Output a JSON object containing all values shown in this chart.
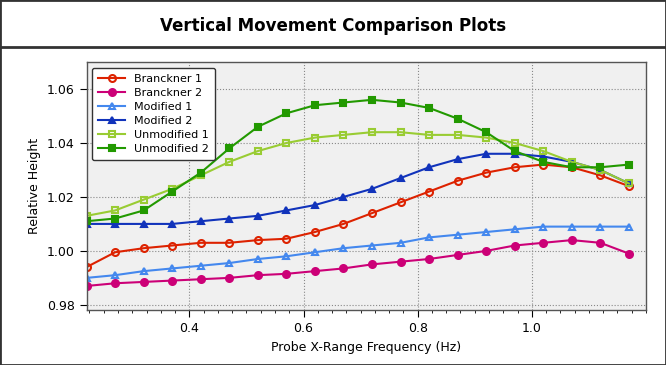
{
  "title": "Vertical Movement Comparison Plots",
  "xlabel": "Probe X-Range Frequency (Hz)",
  "ylabel": "Relative Height",
  "xlim": [
    0.22,
    1.2
  ],
  "ylim": [
    0.978,
    1.07
  ],
  "yticks": [
    0.98,
    1.0,
    1.02,
    1.04,
    1.06
  ],
  "xticks": [
    0.4,
    0.6,
    0.8,
    1.0
  ],
  "plot_bg": "#f0f0f0",
  "fig_bg": "#ffffff",
  "outer_bg": "#bbbbbb",
  "series": [
    {
      "label": "Branckner 1",
      "color": "#dd2200",
      "marker": "o",
      "fillstyle": "none",
      "x": [
        0.22,
        0.27,
        0.32,
        0.37,
        0.42,
        0.47,
        0.52,
        0.57,
        0.62,
        0.67,
        0.72,
        0.77,
        0.82,
        0.87,
        0.92,
        0.97,
        1.02,
        1.07,
        1.12,
        1.17
      ],
      "y": [
        0.994,
        0.9995,
        1.001,
        1.002,
        1.003,
        1.003,
        1.004,
        1.0045,
        1.007,
        1.01,
        1.014,
        1.018,
        1.022,
        1.026,
        1.029,
        1.031,
        1.032,
        1.031,
        1.028,
        1.024
      ]
    },
    {
      "label": "Branckner 2",
      "color": "#cc0077",
      "marker": "o",
      "fillstyle": "full",
      "x": [
        0.22,
        0.27,
        0.32,
        0.37,
        0.42,
        0.47,
        0.52,
        0.57,
        0.62,
        0.67,
        0.72,
        0.77,
        0.82,
        0.87,
        0.92,
        0.97,
        1.02,
        1.07,
        1.12,
        1.17
      ],
      "y": [
        0.987,
        0.988,
        0.9885,
        0.989,
        0.9895,
        0.99,
        0.991,
        0.9915,
        0.9925,
        0.9935,
        0.995,
        0.996,
        0.997,
        0.9985,
        1.0,
        1.002,
        1.003,
        1.004,
        1.003,
        0.999
      ]
    },
    {
      "label": "Modified 1",
      "color": "#4488ee",
      "marker": "^",
      "fillstyle": "none",
      "x": [
        0.22,
        0.27,
        0.32,
        0.37,
        0.42,
        0.47,
        0.52,
        0.57,
        0.62,
        0.67,
        0.72,
        0.77,
        0.82,
        0.87,
        0.92,
        0.97,
        1.02,
        1.07,
        1.12,
        1.17
      ],
      "y": [
        0.99,
        0.991,
        0.9925,
        0.9935,
        0.9945,
        0.9955,
        0.997,
        0.998,
        0.9995,
        1.001,
        1.002,
        1.003,
        1.005,
        1.006,
        1.007,
        1.008,
        1.009,
        1.009,
        1.009,
        1.009
      ]
    },
    {
      "label": "Modified 2",
      "color": "#1133bb",
      "marker": "^",
      "fillstyle": "full",
      "x": [
        0.22,
        0.27,
        0.32,
        0.37,
        0.42,
        0.47,
        0.52,
        0.57,
        0.62,
        0.67,
        0.72,
        0.77,
        0.82,
        0.87,
        0.92,
        0.97,
        1.02,
        1.07,
        1.12,
        1.17
      ],
      "y": [
        1.01,
        1.01,
        1.01,
        1.01,
        1.011,
        1.012,
        1.013,
        1.015,
        1.017,
        1.02,
        1.023,
        1.027,
        1.031,
        1.034,
        1.036,
        1.036,
        1.035,
        1.033,
        1.03,
        1.025
      ]
    },
    {
      "label": "Unmodified 1",
      "color": "#99cc33",
      "marker": "s",
      "fillstyle": "none",
      "x": [
        0.22,
        0.27,
        0.32,
        0.37,
        0.42,
        0.47,
        0.52,
        0.57,
        0.62,
        0.67,
        0.72,
        0.77,
        0.82,
        0.87,
        0.92,
        0.97,
        1.02,
        1.07,
        1.12,
        1.17
      ],
      "y": [
        1.013,
        1.015,
        1.019,
        1.023,
        1.028,
        1.033,
        1.037,
        1.04,
        1.042,
        1.043,
        1.044,
        1.044,
        1.043,
        1.043,
        1.042,
        1.04,
        1.037,
        1.033,
        1.03,
        1.025
      ]
    },
    {
      "label": "Unmodified 2",
      "color": "#229900",
      "marker": "s",
      "fillstyle": "full",
      "x": [
        0.22,
        0.27,
        0.32,
        0.37,
        0.42,
        0.47,
        0.52,
        0.57,
        0.62,
        0.67,
        0.72,
        0.77,
        0.82,
        0.87,
        0.92,
        0.97,
        1.02,
        1.07,
        1.12,
        1.17
      ],
      "y": [
        1.011,
        1.012,
        1.015,
        1.022,
        1.029,
        1.038,
        1.046,
        1.051,
        1.054,
        1.055,
        1.056,
        1.055,
        1.053,
        1.049,
        1.044,
        1.037,
        1.033,
        1.031,
        1.031,
        1.032
      ]
    }
  ]
}
